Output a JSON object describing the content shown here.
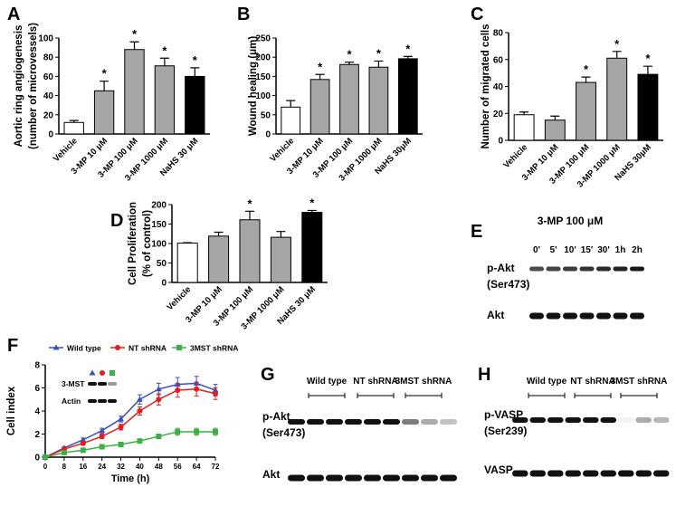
{
  "chart_data": [
    {
      "type": "bar",
      "label": "A",
      "ylabel": [
        "Aortic ring angiogenesis",
        "(number of microvessels)"
      ],
      "categories": [
        "Vehicle",
        "3-MP 10 μM",
        "3-MP 100 μM",
        "3-MP 1000 μM",
        "NaHS 30 μM"
      ],
      "values": [
        12,
        45,
        88,
        71,
        60
      ],
      "errors": [
        2,
        10,
        8,
        8,
        9
      ],
      "colors": [
        "#ffffff",
        "#a6a6a6",
        "#a6a6a6",
        "#a6a6a6",
        "#000000"
      ],
      "annotations": [
        {
          "x": "3-MP 10 μM",
          "text": "*"
        },
        {
          "x": "3-MP 100 μM",
          "text": "*"
        },
        {
          "x": "3-MP 1000 μM",
          "text": "*"
        },
        {
          "x": "NaHS 30 μM",
          "text": "*"
        }
      ],
      "ylim": [
        0,
        100
      ],
      "yticks": [
        0,
        20,
        40,
        60,
        80,
        100
      ]
    },
    {
      "type": "bar",
      "label": "B",
      "ylabel": [
        "Wound healing (μm)"
      ],
      "categories": [
        "Vehicle",
        "3-MP 10 μM",
        "3-MP 100 μM",
        "3-MP 1000 μM",
        "NaHS 30μM"
      ],
      "values": [
        70,
        142,
        181,
        174,
        196
      ],
      "errors": [
        17,
        13,
        6,
        16,
        6
      ],
      "colors": [
        "#ffffff",
        "#a6a6a6",
        "#a6a6a6",
        "#a6a6a6",
        "#000000"
      ],
      "annotations": [
        {
          "x": "3-MP 10 μM",
          "text": "*"
        },
        {
          "x": "3-MP 100 μM",
          "text": "*"
        },
        {
          "x": "3-MP 1000 μM",
          "text": "*"
        },
        {
          "x": "NaHS 30μM",
          "text": "*"
        }
      ],
      "ylim": [
        0,
        250
      ],
      "yticks": [
        0,
        50,
        100,
        150,
        200,
        250
      ]
    },
    {
      "type": "bar",
      "label": "C",
      "ylabel": [
        "Number of migrated cells"
      ],
      "categories": [
        "Vehicle",
        "3-MP 10 μM",
        "3-MP 100 μM",
        "3-MP 1000 μM",
        "NaHS 30μM"
      ],
      "values": [
        19,
        15,
        43,
        61,
        49
      ],
      "errors": [
        2,
        3,
        4,
        5,
        6
      ],
      "colors": [
        "#ffffff",
        "#a6a6a6",
        "#a6a6a6",
        "#a6a6a6",
        "#000000"
      ],
      "annotations": [
        {
          "x": "3-MP 100 μM",
          "text": "*"
        },
        {
          "x": "3-MP 1000 μM",
          "text": "*"
        },
        {
          "x": "NaHS 30μM",
          "text": "*"
        }
      ],
      "ylim": [
        0,
        80
      ],
      "yticks": [
        0,
        20,
        40,
        60,
        80
      ]
    },
    {
      "type": "bar",
      "label": "D",
      "ylabel": [
        "Cell Proliferation",
        "(% of control)"
      ],
      "categories": [
        "Vehicle",
        "3-MP 10 μM",
        "3-MP 100 μM",
        "3-MP 1000 μM",
        "NaHS 30 μM"
      ],
      "values": [
        101,
        119,
        161,
        116,
        180
      ],
      "errors": [
        1,
        10,
        22,
        15,
        5
      ],
      "colors": [
        "#ffffff",
        "#a6a6a6",
        "#a6a6a6",
        "#a6a6a6",
        "#000000"
      ],
      "annotations": [
        {
          "x": "3-MP 100 μM",
          "text": "*"
        },
        {
          "x": "NaHS 30 μM",
          "text": "*"
        }
      ],
      "ylim": [
        0,
        200
      ],
      "yticks": [
        0,
        50,
        100,
        150,
        200
      ]
    },
    {
      "type": "line",
      "label": "F",
      "xlabel": "Time (h)",
      "ylabel": [
        "Cell index"
      ],
      "x": [
        0,
        8,
        16,
        24,
        32,
        40,
        48,
        56,
        64,
        72
      ],
      "series": [
        {
          "name": "Wild type",
          "color": "#3a4fbf",
          "marker": "triangle",
          "values": [
            0,
            0.8,
            1.5,
            2.3,
            3.3,
            5.0,
            5.9,
            6.3,
            6.4,
            5.8
          ],
          "errors": [
            0,
            0.1,
            0.15,
            0.2,
            0.25,
            0.4,
            0.5,
            0.6,
            0.6,
            0.5
          ]
        },
        {
          "name": "NT shRNA",
          "color": "#e02020",
          "marker": "circle",
          "values": [
            0,
            0.7,
            1.2,
            1.8,
            2.6,
            4.0,
            5.0,
            5.8,
            5.9,
            5.5
          ],
          "errors": [
            0,
            0.1,
            0.15,
            0.2,
            0.25,
            0.35,
            0.5,
            0.6,
            0.6,
            0.5
          ]
        },
        {
          "name": "3MST shRNA",
          "color": "#3cb043",
          "marker": "square",
          "values": [
            0,
            0.4,
            0.6,
            0.9,
            1.1,
            1.4,
            1.8,
            2.2,
            2.2,
            2.2
          ],
          "errors": [
            0,
            0.05,
            0.1,
            0.1,
            0.1,
            0.15,
            0.2,
            0.3,
            0.3,
            0.3
          ]
        }
      ],
      "inset": {
        "rows": [
          "3-MST",
          "Actin"
        ]
      },
      "xlim": [
        0,
        72
      ],
      "xticks": [
        0,
        8,
        16,
        24,
        32,
        40,
        48,
        56,
        64,
        72
      ],
      "ylim": [
        0,
        8
      ],
      "yticks": [
        0,
        2,
        4,
        6,
        8
      ]
    }
  ],
  "blots": {
    "E": {
      "label": "E",
      "title": "3-MP 100 μM",
      "lanes": [
        "0'",
        "5'",
        "10'",
        "15'",
        "30'",
        "1h",
        "2h"
      ],
      "rows": [
        [
          "p-Akt",
          "(Ser473)"
        ],
        [
          "Akt"
        ]
      ]
    },
    "G": {
      "label": "G",
      "groups": [
        "Wild type",
        "NT shRNA",
        "3MST shRNA"
      ],
      "rows": [
        [
          "p-Akt",
          "(Ser473)"
        ],
        [
          "Akt"
        ]
      ]
    },
    "H": {
      "label": "H",
      "groups": [
        "Wild type",
        "NT shRNA",
        "3MST shRNA"
      ],
      "rows": [
        [
          "p-VASP",
          "(Ser239)"
        ],
        [
          "VASP"
        ]
      ]
    }
  }
}
